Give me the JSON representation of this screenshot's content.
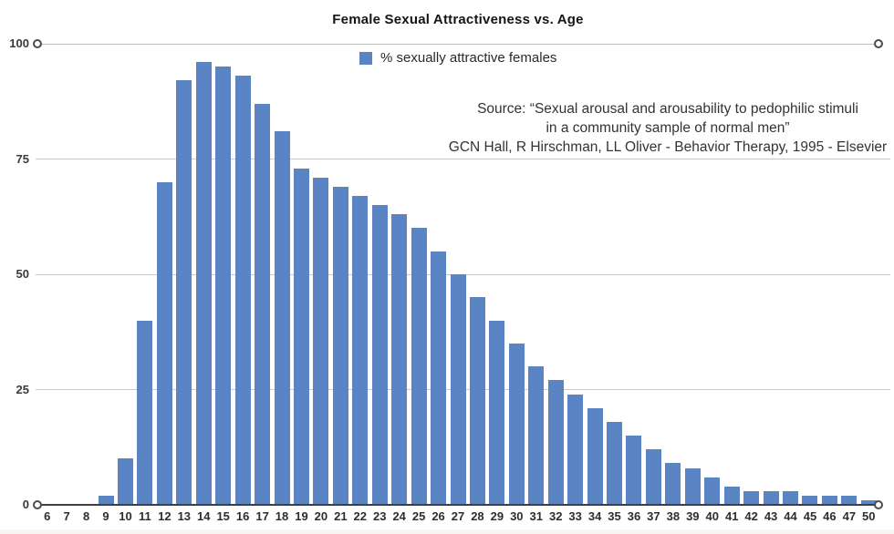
{
  "chart_data": {
    "type": "bar",
    "title": "Female Sexual Attractiveness vs. Age",
    "legend": [
      {
        "label": "% sexually attractive females",
        "color": "#5b84c4"
      }
    ],
    "categories": [
      "6",
      "7",
      "8",
      "9",
      "10",
      "11",
      "12",
      "13",
      "14",
      "15",
      "16",
      "17",
      "18",
      "19",
      "20",
      "21",
      "22",
      "23",
      "24",
      "25",
      "26",
      "27",
      "28",
      "29",
      "30",
      "31",
      "32",
      "33",
      "34",
      "35",
      "36",
      "37",
      "38",
      "39",
      "40",
      "41",
      "42",
      "43",
      "44",
      "45",
      "46",
      "47",
      "50"
    ],
    "values": [
      0,
      0,
      0,
      2,
      10,
      40,
      70,
      92,
      96,
      95,
      93,
      87,
      81,
      73,
      71,
      69,
      67,
      65,
      63,
      60,
      55,
      50,
      45,
      40,
      35,
      30,
      27,
      24,
      21,
      18,
      15,
      12,
      9,
      8,
      6,
      4,
      3,
      3,
      3,
      2,
      2,
      2,
      1
    ],
    "xlabel": "",
    "ylabel": "",
    "ylim": [
      0,
      100
    ],
    "yticks": [
      0,
      25,
      50,
      75,
      100
    ],
    "endpoint_marker_ticks": [
      0,
      100
    ],
    "grid": "horizontal",
    "legend_position": "top-center",
    "bar_color": "#5b84c4",
    "source_lines": [
      "Source: “Sexual arousal and arousability to pedophilic stimuli",
      "in a community sample of normal men”",
      "GCN Hall, R Hirschman, LL Oliver - Behavior Therapy, 1995 - Elsevier"
    ]
  }
}
